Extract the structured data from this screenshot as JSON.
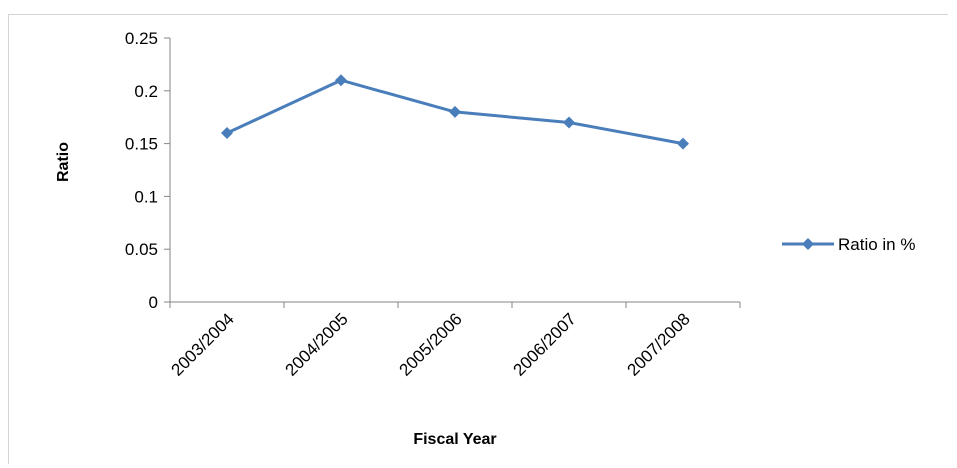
{
  "chart_data": {
    "type": "line",
    "title": "",
    "xlabel": "Fiscal Year",
    "ylabel": "Ratio",
    "categories": [
      "2003/2004",
      "2004/2005",
      "2005/2006",
      "2006/2007",
      "2007/2008"
    ],
    "series": [
      {
        "name": "Ratio in %",
        "values": [
          0.16,
          0.21,
          0.18,
          0.17,
          0.15
        ],
        "color": "#4a7ebb"
      }
    ],
    "ylim": [
      0,
      0.25
    ],
    "yticks": [
      0,
      0.05,
      0.1,
      0.15,
      0.2,
      0.25
    ],
    "ytick_labels": [
      "0",
      "0.05",
      "0.1",
      "0.15",
      "0.2",
      "0.25"
    ],
    "grid": false,
    "legend": {
      "position": "right",
      "marker": "diamond"
    }
  }
}
